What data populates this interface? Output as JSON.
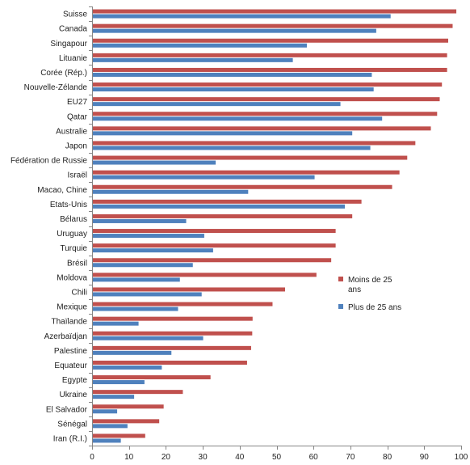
{
  "chart_data": {
    "type": "bar",
    "orientation": "horizontal",
    "title": "",
    "xlabel": "",
    "ylabel": "",
    "xlim": [
      0,
      100
    ],
    "x_ticks": [
      0,
      10,
      20,
      30,
      40,
      50,
      60,
      70,
      80,
      90,
      100
    ],
    "grid": false,
    "legend_position": "right",
    "categories": [
      "Suisse",
      "Canada",
      "Singapour",
      "Lituanie",
      "Corée (Rép.)",
      "Nouvelle-Zélande",
      "EU27",
      "Qatar",
      "Australie",
      "Japon",
      "Fédération de Russie",
      "Israël",
      "Macao, Chine",
      "Etats-Unis",
      "Bélarus",
      "Uruguay",
      "Turquie",
      "Brésil",
      "Moldova",
      "Chili",
      "Mexique",
      "Thaïlande",
      "Azerbaïdjan",
      "Palestine",
      "Equateur",
      "Egypte",
      "Ukraine",
      "El Salvador",
      "Sénégal",
      "Iran (R.I.)"
    ],
    "series": [
      {
        "name": "Moins de 25 ans",
        "color": "#c0504d",
        "values": [
          98.7,
          97.7,
          96.5,
          96.2,
          96.2,
          94.8,
          94.2,
          93.5,
          91.8,
          87.6,
          85.4,
          83.3,
          81.3,
          73.0,
          70.5,
          66.0,
          66.0,
          64.8,
          60.8,
          52.3,
          48.9,
          43.5,
          43.4,
          43.1,
          42.0,
          32.1,
          24.6,
          19.4,
          18.2,
          14.4
        ]
      },
      {
        "name": "Plus de 25 ans",
        "color": "#4f81bd",
        "values": [
          80.9,
          77.0,
          58.2,
          54.4,
          75.8,
          76.3,
          67.3,
          78.6,
          70.5,
          75.4,
          33.5,
          60.3,
          42.3,
          68.5,
          25.5,
          30.4,
          32.8,
          27.3,
          23.8,
          29.7,
          23.3,
          12.6,
          30.1,
          21.5,
          18.9,
          14.2,
          11.4,
          6.8,
          9.6,
          7.8
        ]
      }
    ]
  }
}
